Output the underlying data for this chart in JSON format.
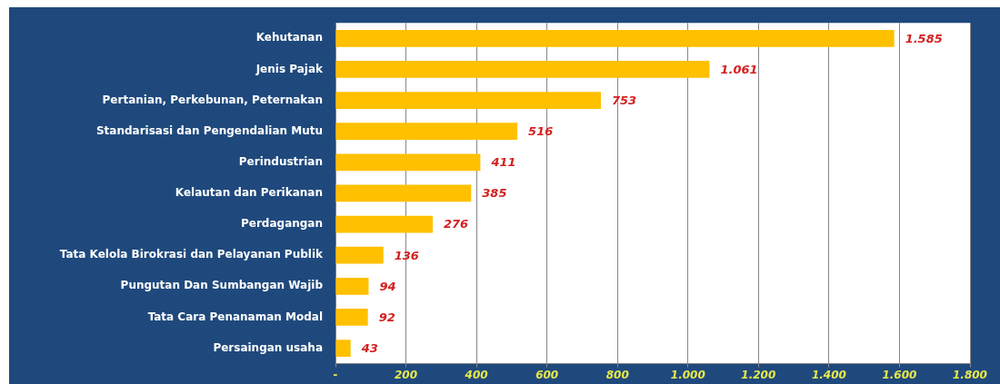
{
  "chart_data": {
    "type": "bar",
    "orientation": "horizontal",
    "categories": [
      "Kehutanan",
      "Jenis Pajak",
      "Pertanian, Perkebunan, Peternakan",
      "Standarisasi dan Pengendalian Mutu",
      "Perindustrian",
      "Kelautan dan Perikanan",
      "Perdagangan",
      "Tata Kelola Birokrasi dan Pelayanan Publik",
      "Pungutan Dan Sumbangan Wajib",
      "Tata Cara Penanaman Modal",
      "Persaingan usaha"
    ],
    "values": [
      1585,
      1061,
      753,
      516,
      411,
      385,
      276,
      136,
      94,
      92,
      43
    ],
    "value_labels": [
      "1.585",
      "1.061",
      "753",
      "516",
      "411",
      "385",
      "276",
      "136",
      "94",
      "92",
      "43"
    ],
    "color": "#ffc000",
    "xlim": [
      0,
      1800
    ],
    "xticks": [
      {
        "value": 0,
        "label": "-"
      },
      200,
      400,
      600,
      800,
      {
        "value": 1000,
        "label": "1.000"
      },
      {
        "value": 1200,
        "label": "1.200"
      },
      {
        "value": 1400,
        "label": "1.400"
      },
      {
        "value": 1600,
        "label": "1.600"
      },
      {
        "value": 1800,
        "label": "1.800"
      }
    ],
    "grid": "x",
    "legend": false
  }
}
